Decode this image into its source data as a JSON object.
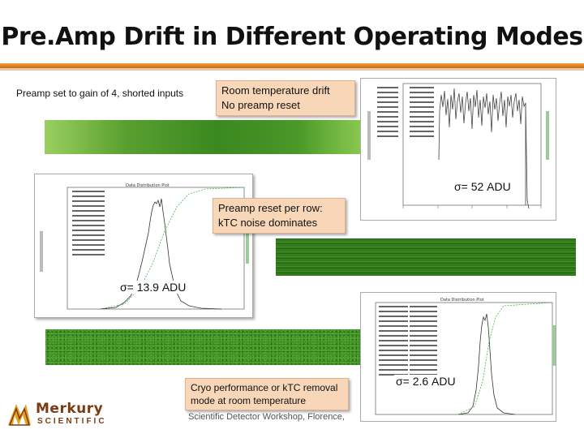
{
  "slide": {
    "title": "Pre.Amp Drift in Different Operating Modes",
    "subtitle": "Preamp set to gain of 4, shorted inputs",
    "footer": "Scientific Detector Workshop, Florence,"
  },
  "callouts": {
    "room_temp": [
      "Room temperature drift",
      "No preamp reset"
    ],
    "reset_per_row": [
      "Preamp reset per row:",
      "kTC noise dominates"
    ],
    "cryo": [
      "Cryo performance or kTC removal",
      "mode at room temperature"
    ]
  },
  "sigmas": {
    "room_temp": "σ= 52 ADU",
    "reset_per_row": "σ= 13.9 ADU",
    "cryo": "σ= 2.6 ADU"
  },
  "logo": {
    "name": "Merkury",
    "sub": "SCIENTIFIC",
    "colors": {
      "primary": "#7a3b10",
      "accent": "#e8a020"
    }
  },
  "colors": {
    "accent_rule": "#d88020",
    "callout_bg": "#f8d6b8",
    "image_green": "#3a8a20"
  },
  "plots": {
    "mid": {
      "title": "Data Distribution Plot"
    },
    "right": {
      "title": "Data Distribution Plot"
    }
  }
}
